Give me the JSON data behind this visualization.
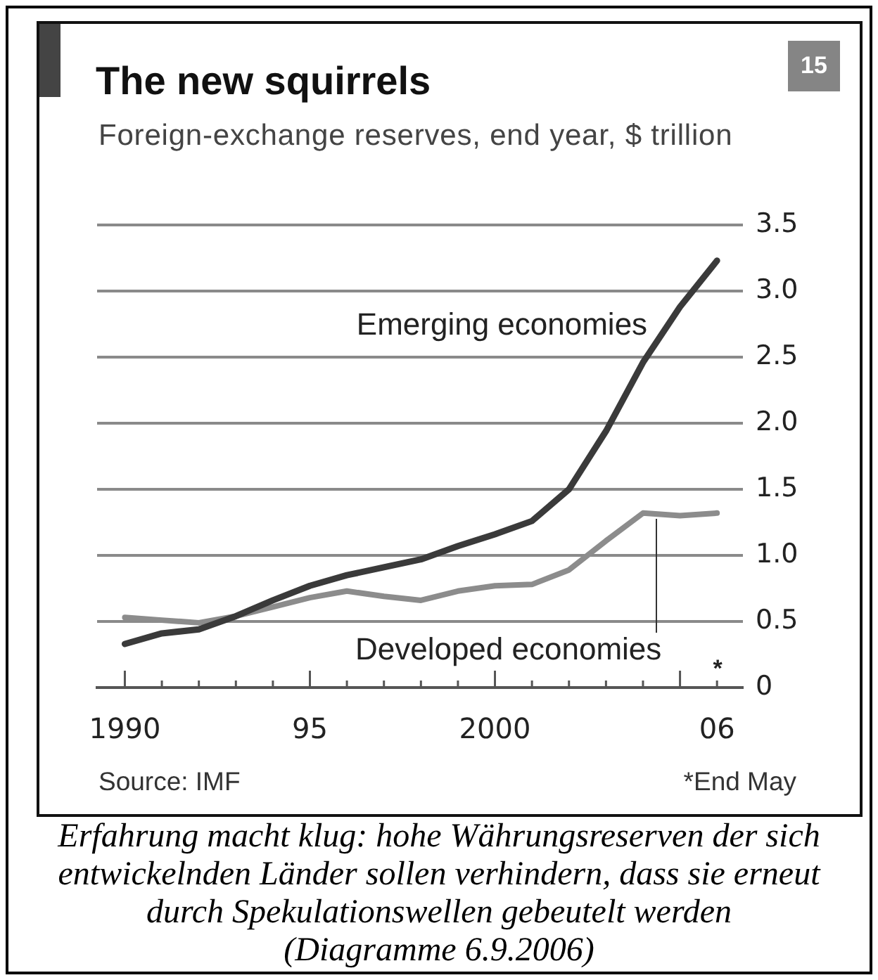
{
  "chart_data": {
    "type": "line",
    "title": "The new squirrels",
    "subtitle": "Foreign-exchange reserves, end year, $ trillion",
    "x": [
      1990,
      1991,
      1992,
      1993,
      1994,
      1995,
      1996,
      1997,
      1998,
      1999,
      2000,
      2001,
      2002,
      2003,
      2004,
      2005,
      2006
    ],
    "series": [
      {
        "name": "Emerging economies",
        "color": "#3a3a3a",
        "values": [
          0.33,
          0.41,
          0.44,
          0.54,
          0.66,
          0.77,
          0.85,
          0.91,
          0.97,
          1.07,
          1.16,
          1.26,
          1.5,
          1.94,
          2.46,
          2.88,
          3.23
        ]
      },
      {
        "name": "Developed economies",
        "color": "#8c8c8c",
        "values": [
          0.53,
          0.51,
          0.49,
          0.54,
          0.61,
          0.68,
          0.73,
          0.69,
          0.66,
          0.73,
          0.77,
          0.78,
          0.89,
          1.11,
          1.32,
          1.3,
          1.32
        ]
      }
    ],
    "xlim": [
      1989.25,
      2006.7
    ],
    "xticks": [
      {
        "value": 1990,
        "label": "1990"
      },
      {
        "value": 1991,
        "label": null
      },
      {
        "value": 1992,
        "label": null
      },
      {
        "value": 1993,
        "label": null
      },
      {
        "value": 1994,
        "label": null
      },
      {
        "value": 1995,
        "label": "95"
      },
      {
        "value": 1996,
        "label": null
      },
      {
        "value": 1997,
        "label": null
      },
      {
        "value": 1998,
        "label": null
      },
      {
        "value": 1999,
        "label": null
      },
      {
        "value": 2000,
        "label": "2000"
      },
      {
        "value": 2001,
        "label": null
      },
      {
        "value": 2002,
        "label": null
      },
      {
        "value": 2003,
        "label": null
      },
      {
        "value": 2004,
        "label": null
      },
      {
        "value": 2005,
        "label": null
      },
      {
        "value": 2006,
        "label": "06"
      }
    ],
    "ylim": [
      0,
      3.5
    ],
    "yticks": [
      0,
      0.5,
      {
        "value": 1,
        "label": "1.0"
      },
      1.5,
      {
        "value": 2,
        "label": "2.0"
      },
      2.5,
      {
        "value": 3,
        "label": "3.0"
      },
      3.5
    ],
    "grid": "y",
    "legend": false,
    "annotations": [
      "15",
      "Source: IMF",
      "*End May",
      "Erfahrung macht klug: hohe Währungsreserven der sich entwickelnden Länder sollen verhindern, dass sie erneut durch Spekulationswellen gebeutelt werden",
      "(Diagramme 6.9.2006)",
      "*"
    ]
  }
}
